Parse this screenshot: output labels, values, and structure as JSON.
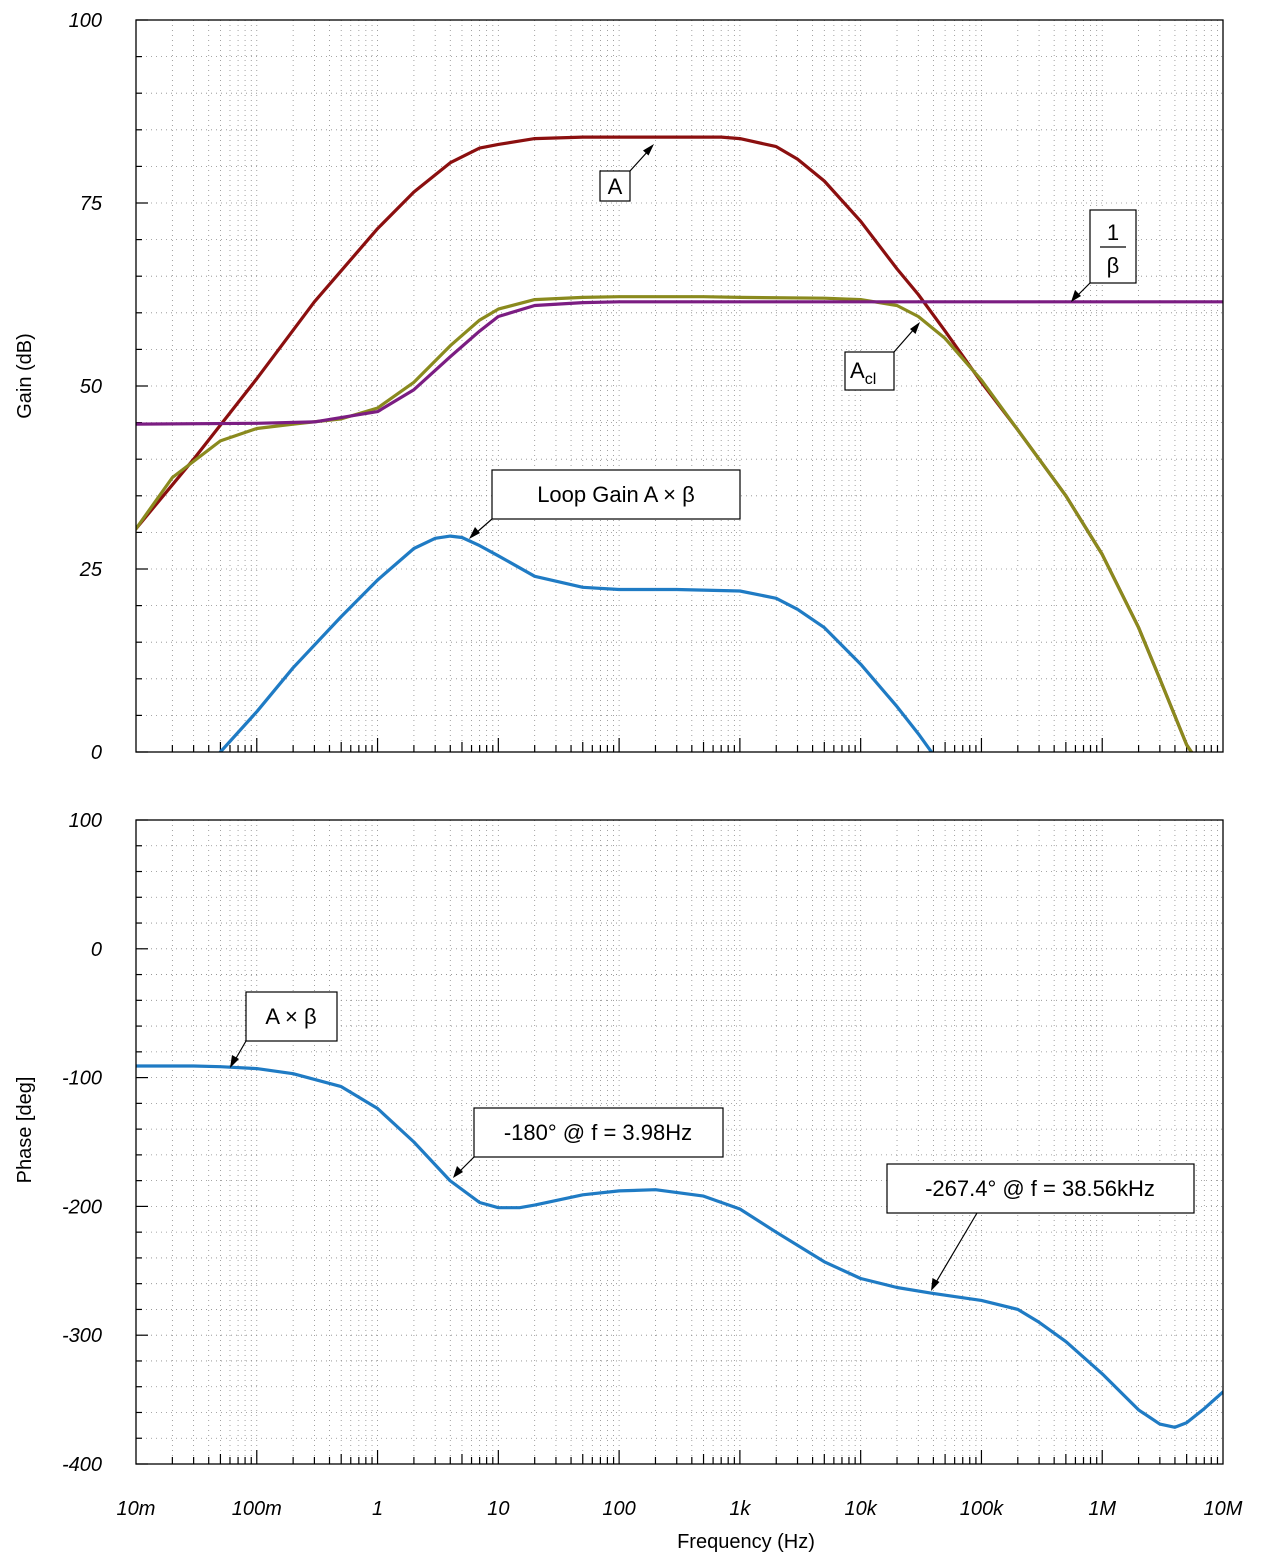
{
  "chart_data": [
    {
      "type": "line",
      "panel": "gain",
      "ylabel": "Gain (dB)",
      "xscale": "log",
      "xlim": [
        0.01,
        10000000
      ],
      "ylim": [
        0,
        100
      ],
      "yticks": [
        "0",
        "25",
        "50",
        "75",
        "100"
      ],
      "grid": true,
      "series": [
        {
          "name": "A",
          "color": "#8b0f0f",
          "x": [
            0.01,
            0.03,
            0.1,
            0.3,
            1,
            2,
            4,
            7,
            10,
            20,
            50,
            100,
            300,
            700,
            1000,
            2000,
            3000,
            5000,
            10000,
            20000,
            30000,
            50000,
            100000,
            200000,
            500000,
            1000000,
            2000000,
            3000000,
            5000000,
            6000000
          ],
          "y": [
            30.5,
            40,
            51,
            61.5,
            71.5,
            76.5,
            80.5,
            82.5,
            83,
            83.8,
            84,
            84,
            84,
            84,
            83.8,
            82.7,
            81,
            78,
            72.5,
            66,
            62.5,
            57.5,
            50.5,
            44,
            35,
            27,
            17,
            10,
            1,
            -1
          ]
        },
        {
          "name": "A_cl",
          "color": "#8a8a1e",
          "x": [
            0.01,
            0.02,
            0.05,
            0.1,
            0.2,
            0.5,
            1,
            2,
            4,
            7,
            10,
            20,
            50,
            100,
            500,
            1000,
            5000,
            10000,
            20000,
            30000,
            50000,
            100000,
            200000,
            500000,
            1000000,
            2000000,
            3000000,
            5000000,
            6000000
          ],
          "y": [
            30.5,
            37.5,
            42.5,
            44.2,
            44.8,
            45.5,
            47,
            50.5,
            55.5,
            59,
            60.5,
            61.8,
            62.1,
            62.2,
            62.2,
            62.1,
            62,
            61.8,
            61,
            59.5,
            56.5,
            50.8,
            44,
            35,
            27,
            17,
            10,
            1,
            -1
          ]
        },
        {
          "name": "1/β",
          "color": "#7b1d82",
          "x": [
            0.01,
            0.1,
            0.3,
            1,
            2,
            4,
            7,
            10,
            20,
            50,
            100,
            1000,
            10000,
            100000,
            1000000,
            10000000
          ],
          "y": [
            44.8,
            44.9,
            45.1,
            46.5,
            49.5,
            54,
            57.5,
            59.5,
            61,
            61.4,
            61.5,
            61.5,
            61.5,
            61.5,
            61.5,
            61.5
          ]
        },
        {
          "name": "Loop Gain A × β",
          "color": "#1f7bc4",
          "x": [
            0.05,
            0.1,
            0.2,
            0.5,
            1,
            2,
            3,
            4,
            5,
            7,
            10,
            20,
            50,
            100,
            300,
            1000,
            2000,
            3000,
            5000,
            10000,
            20000,
            30000,
            38560
          ],
          "y": [
            0,
            5.5,
            11.5,
            18.5,
            23.5,
            27.8,
            29.2,
            29.5,
            29.3,
            28.2,
            26.8,
            24,
            22.5,
            22.2,
            22.2,
            22,
            21,
            19.5,
            17,
            12,
            6.2,
            2.5,
            0
          ]
        }
      ]
    },
    {
      "type": "line",
      "panel": "phase",
      "ylabel": "Phase [deg]",
      "xlabel": "Frequency (Hz)",
      "xscale": "log",
      "xlim": [
        0.01,
        10000000
      ],
      "ylim": [
        -400,
        100
      ],
      "yticks": [
        "-400",
        "-300",
        "-200",
        "-100",
        "0",
        "100"
      ],
      "xticks": [
        "10m",
        "100m",
        "1",
        "10",
        "100",
        "1k",
        "10k",
        "100k",
        "1M",
        "10M"
      ],
      "grid": true,
      "series": [
        {
          "name": "A × β",
          "color": "#1f7bc4",
          "x": [
            0.01,
            0.03,
            0.05,
            0.1,
            0.2,
            0.5,
            1,
            2,
            3.98,
            7,
            10,
            15,
            20,
            50,
            100,
            200,
            500,
            1000,
            2000,
            5000,
            10000,
            20000,
            38560,
            100000,
            200000,
            300000,
            500000,
            1000000,
            2000000,
            3000000,
            4000000,
            5000000,
            7000000,
            10000000
          ],
          "y": [
            -91,
            -91,
            -91.5,
            -93,
            -97,
            -107,
            -124,
            -150,
            -180,
            -197,
            -201,
            -201,
            -199,
            -191,
            -188,
            -187,
            -192,
            -202,
            -220,
            -243,
            -256,
            -263,
            -267.4,
            -273,
            -280,
            -290,
            -305,
            -330,
            -358,
            -369,
            -371.5,
            -368,
            -357,
            -344
          ]
        }
      ]
    }
  ],
  "annotations": {
    "a": "A",
    "inv_beta_num": "1",
    "inv_beta_den": "β",
    "acl_main": "A",
    "acl_sub": "cl",
    "loop_gain": "Loop Gain A × β",
    "axb": "A × β",
    "phase_180": "-180° @ f = 3.98Hz",
    "phase_267": "-267.4° @ f = 38.56kHz"
  }
}
